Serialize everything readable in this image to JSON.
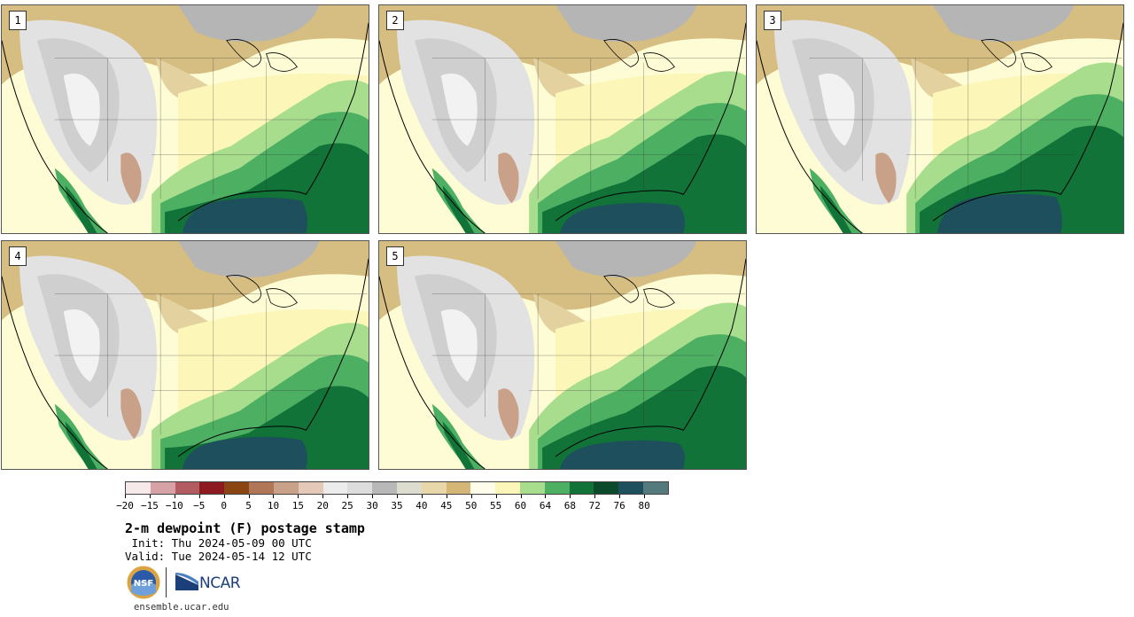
{
  "panels": [
    {
      "label": "1"
    },
    {
      "label": "2"
    },
    {
      "label": "3"
    },
    {
      "label": "4"
    },
    {
      "label": "5"
    }
  ],
  "colorbar": {
    "colors": [
      "#f7e9e9",
      "#d6a2a6",
      "#b25b60",
      "#8e1a21",
      "#8b4513",
      "#b07656",
      "#c9a088",
      "#e4c8b8",
      "#ececec",
      "#dddddd",
      "#b8b8b8",
      "#dcdccf",
      "#e8d8a9",
      "#d4b677",
      "#fffce9",
      "#fcf7b9",
      "#a8dd8e",
      "#4daf62",
      "#117338",
      "#0b4b2c",
      "#1e4f5c",
      "#557a7e"
    ],
    "ticks": [
      "−20",
      "−15",
      "−10",
      "−5",
      "0",
      "5",
      "10",
      "15",
      "20",
      "25",
      "30",
      "35",
      "40",
      "45",
      "50",
      "55",
      "60",
      "64",
      "68",
      "72",
      "76",
      "80"
    ]
  },
  "title": "2-m dewpoint (F) postage stamp",
  "init": " Init: Thu 2024-05-09 00 UTC",
  "valid": "Valid: Tue 2024-05-14 12 UTC",
  "logos": {
    "nsf": "NSF",
    "ncar": "NCAR"
  },
  "site": "ensemble.ucar.edu"
}
